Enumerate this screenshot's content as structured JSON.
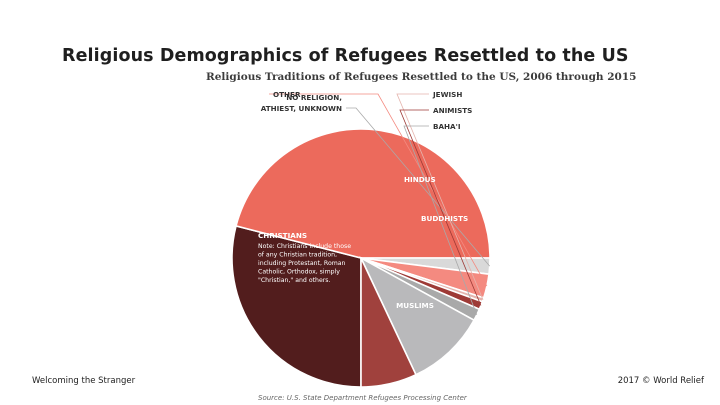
{
  "slide": {
    "title": "Religious Demographics of Refugees Resettled to the US",
    "footer_left": "Welcoming the Stranger",
    "footer_right": "2017 © World Relief"
  },
  "chart_data": {
    "type": "pie",
    "title": "Religious Traditions of Refugees Resettled to the US, 2006 through 2015",
    "source": "Source: U.S. State Department Refugees Processing Center",
    "slices": [
      {
        "label": "MUSLIMS",
        "value": 29.0,
        "color": "#521d1d"
      },
      {
        "label": "CHRISTIANS",
        "value": 46.0,
        "color": "#ec6a5c",
        "note": "Note: Christians include those of any Christian tradition, including Protestant, Roman Catholic, Orthodox, simply \"Christian,\" and others."
      },
      {
        "label": "NO RELIGION, ATHIEST, UNKNOWN",
        "value": 2.0,
        "color": "#d9d9d9"
      },
      {
        "label": "OTHER",
        "value": 3.0,
        "color": "#f48a80"
      },
      {
        "label": "JEWISH",
        "value": 0.5,
        "color": "#e5b4ad"
      },
      {
        "label": "ANIMISTS",
        "value": 1.0,
        "color": "#9e3a36"
      },
      {
        "label": "BAHA'I",
        "value": 1.5,
        "color": "#a9a9a9"
      },
      {
        "label": "HINDUS",
        "value": 10.0,
        "color": "#b9b9bb"
      },
      {
        "label": "BUDDHISTS",
        "value": 7.0,
        "color": "#a0413d"
      }
    ]
  }
}
